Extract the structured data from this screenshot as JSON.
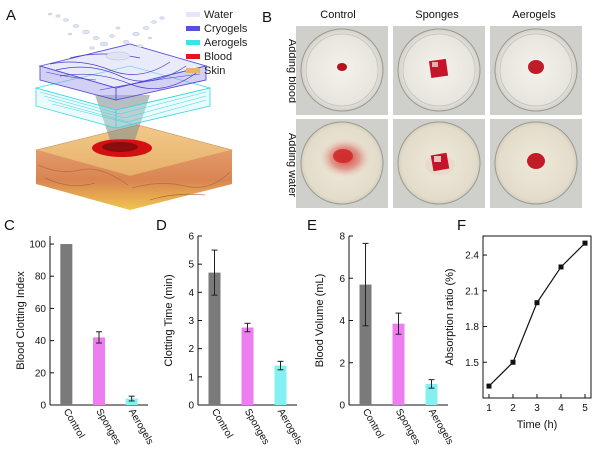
{
  "panels": {
    "a": {
      "letter": "A"
    },
    "b": {
      "letter": "B"
    },
    "c": {
      "letter": "C"
    },
    "d": {
      "letter": "D"
    },
    "e": {
      "letter": "E"
    },
    "f": {
      "letter": "F"
    }
  },
  "schematic": {
    "legend": [
      {
        "label": "Water",
        "color": "#e4e8f6"
      },
      {
        "label": "Cryogels",
        "color": "#5a4fd6"
      },
      {
        "label": "Aerogels",
        "color": "#39e3e6"
      },
      {
        "label": "Blood",
        "color": "#e01818"
      },
      {
        "label": "Skin",
        "color": "#e9b36c"
      }
    ]
  },
  "photos": {
    "columns": [
      "Control",
      "Sponges",
      "Aerogels"
    ],
    "rows": [
      "Adding blood",
      "Adding water"
    ]
  },
  "colors": {
    "control": "#7a7a7a",
    "sponges": "#ee7ef0",
    "aerogels": "#84f0f2",
    "line": "#111111"
  },
  "chart_data": [
    {
      "id": "c",
      "type": "bar",
      "ylabel": "Blood Clotting Index",
      "categories": [
        "Control",
        "Sponges",
        "Aerogels"
      ],
      "values": [
        100,
        42,
        4
      ],
      "errors": [
        0,
        3.5,
        1.5
      ],
      "ylim": [
        0,
        105
      ],
      "yticks": [
        "0",
        "20",
        "40",
        "60",
        "80",
        "100"
      ]
    },
    {
      "id": "d",
      "type": "bar",
      "ylabel": "Clotting Time (min)",
      "categories": [
        "Control",
        "Sponges",
        "Aerogels"
      ],
      "values": [
        4.7,
        2.75,
        1.4
      ],
      "errors": [
        0.8,
        0.15,
        0.15
      ],
      "ylim": [
        0,
        6
      ],
      "yticks": [
        "0",
        "1",
        "2",
        "3",
        "4",
        "5",
        "6"
      ]
    },
    {
      "id": "e",
      "type": "bar",
      "ylabel": "Blood Volume (mL)",
      "categories": [
        "Control",
        "Sponges",
        "Aerogels"
      ],
      "values": [
        5.7,
        3.85,
        1.0
      ],
      "errors": [
        1.95,
        0.5,
        0.2
      ],
      "ylim": [
        0,
        8
      ],
      "yticks": [
        "0",
        "2",
        "4",
        "6",
        "8"
      ]
    },
    {
      "id": "f",
      "type": "line",
      "xlabel": "Time (h)",
      "ylabel": "Absorption ratio (%)",
      "x": [
        1,
        2,
        3,
        4,
        5
      ],
      "y": [
        1.3,
        1.5,
        2.0,
        2.3,
        2.5
      ],
      "xlim": [
        0.75,
        5.25
      ],
      "ylim": [
        1.2,
        2.56
      ],
      "xticks": [
        "1",
        "2",
        "3",
        "4",
        "5"
      ],
      "yticks": [
        "1.5",
        "1.8",
        "2.1",
        "2.4"
      ]
    }
  ]
}
